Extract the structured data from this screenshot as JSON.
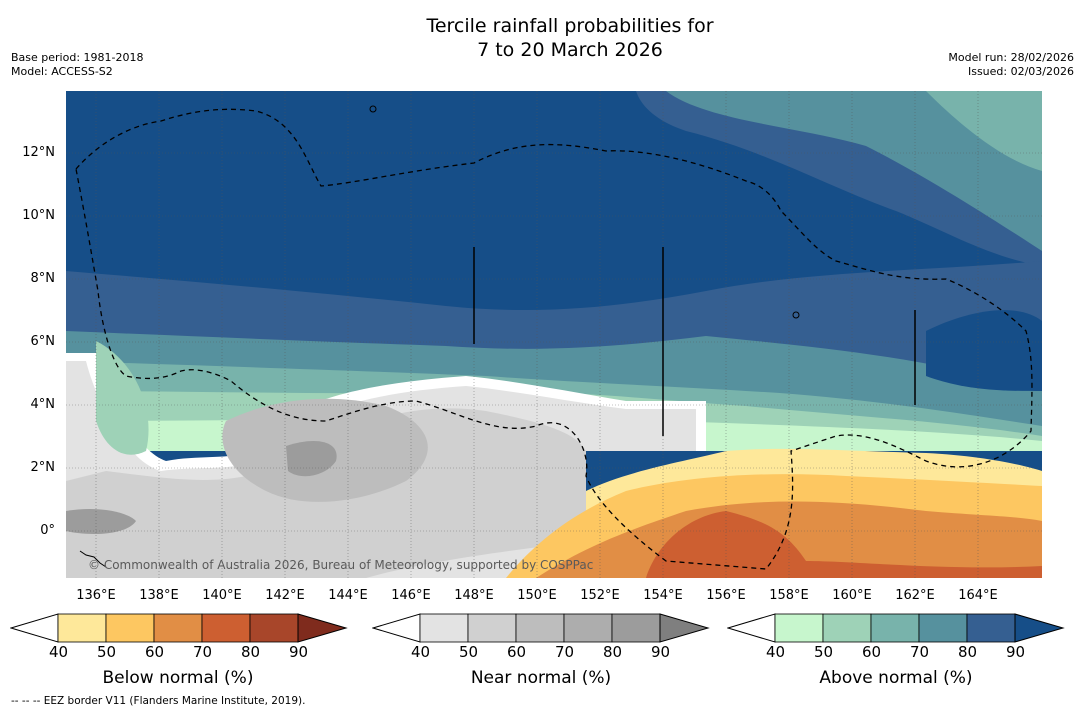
{
  "title": {
    "line1": "Tercile rainfall probabilities for",
    "line2": "7 to 20 March 2026"
  },
  "meta_left": {
    "base_period": "Base period: 1981-2018",
    "model": "Model: ACCESS-S2"
  },
  "meta_right": {
    "model_run": "Model run: 28/02/2026",
    "issued": "Issued: 02/03/2026"
  },
  "map": {
    "copyright": "© Commonwealth of Australia 2026, Bureau of Meteorology, supported by COSPPac",
    "lon_ticks": [
      "136°E",
      "138°E",
      "140°E",
      "142°E",
      "144°E",
      "146°E",
      "148°E",
      "150°E",
      "152°E",
      "154°E",
      "156°E",
      "158°E",
      "160°E",
      "162°E",
      "164°E"
    ],
    "lat_ticks": [
      "12°N",
      "10°N",
      "8°N",
      "6°N",
      "4°N",
      "2°N",
      "0°"
    ]
  },
  "colorbars": {
    "below": {
      "title": "Below normal (%)",
      "ticks": [
        "40",
        "50",
        "60",
        "70",
        "80",
        "90"
      ],
      "colors": [
        "#ffffff",
        "#fee89a",
        "#fdc761",
        "#e18e45",
        "#cd5f31",
        "#a8462a",
        "#7f2b1d"
      ]
    },
    "near": {
      "title": "Near normal (%)",
      "ticks": [
        "40",
        "50",
        "60",
        "70",
        "80",
        "90"
      ],
      "colors": [
        "#ffffff",
        "#e3e3e3",
        "#d0d0d0",
        "#bdbdbd",
        "#adadad",
        "#9c9c9c",
        "#7f7f7f"
      ]
    },
    "above": {
      "title": "Above normal (%)",
      "ticks": [
        "40",
        "50",
        "60",
        "70",
        "80",
        "90"
      ],
      "colors": [
        "#ffffff",
        "#c7f6cd",
        "#9ed2b7",
        "#78b3ab",
        "#56919e",
        "#355f91",
        "#164e88"
      ]
    }
  },
  "footer": "--  --  -- EEZ border V11 (Flanders Marine Institute, 2019)."
}
